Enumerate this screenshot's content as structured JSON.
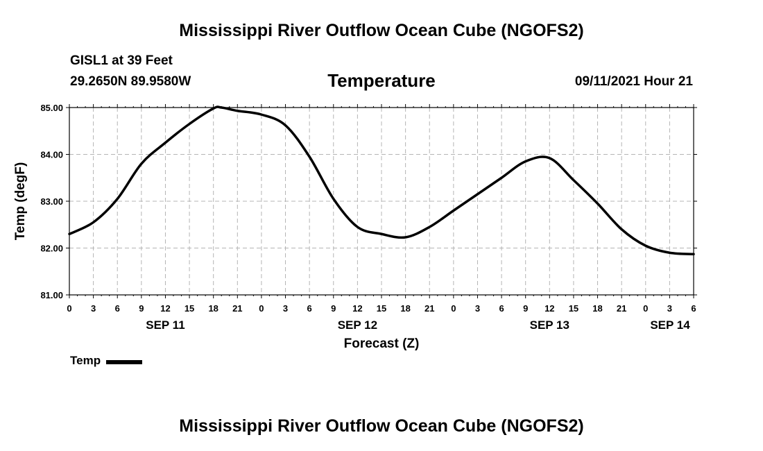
{
  "header": {
    "title": "Mississippi River Outflow Ocean Cube (NGOFS2)",
    "station": "GISL1 at 39 Feet",
    "coordinates": "29.2650N  89.9580W",
    "variable": "Temperature",
    "timestamp": "09/11/2021 Hour 21"
  },
  "footer": {
    "title": "Mississippi River Outflow Ocean Cube (NGOFS2)"
  },
  "legend": {
    "label": "Temp"
  },
  "colors": {
    "line": "#000000",
    "grid": "#b4b4b4"
  },
  "chart_data": {
    "type": "line",
    "title": "Temperature",
    "xlabel": "Forecast (Z)",
    "ylabel": "Temp (degF)",
    "ylim": [
      81.0,
      85.0
    ],
    "xlim_hours": [
      0,
      78
    ],
    "grid": true,
    "y_ticks": [
      "81.00",
      "82.00",
      "83.00",
      "84.00",
      "85.00"
    ],
    "x_ticks": [
      "0",
      "3",
      "6",
      "9",
      "12",
      "15",
      "18",
      "21",
      "0",
      "3",
      "6",
      "9",
      "12",
      "15",
      "18",
      "21",
      "0",
      "3",
      "6",
      "9",
      "12",
      "15",
      "18",
      "21",
      "0",
      "3",
      "6"
    ],
    "date_labels": [
      {
        "label": "SEP 11",
        "hour": 12
      },
      {
        "label": "SEP 12",
        "hour": 36
      },
      {
        "label": "SEP 13",
        "hour": 60
      },
      {
        "label": "SEP 14",
        "hour": 78
      }
    ],
    "series": [
      {
        "name": "Temp",
        "x": [
          0,
          3,
          6,
          9,
          12,
          15,
          18,
          19,
          21,
          24,
          27,
          30,
          33,
          36,
          39,
          42,
          45,
          48,
          51,
          54,
          57,
          60,
          63,
          66,
          69,
          72,
          75,
          78
        ],
        "values": [
          82.3,
          82.55,
          83.05,
          83.8,
          84.25,
          84.65,
          84.98,
          85.0,
          84.93,
          84.85,
          84.62,
          83.95,
          83.05,
          82.45,
          82.3,
          82.23,
          82.45,
          82.8,
          83.15,
          83.5,
          83.85,
          83.92,
          83.45,
          82.95,
          82.4,
          82.05,
          81.9,
          81.87
        ]
      }
    ]
  }
}
